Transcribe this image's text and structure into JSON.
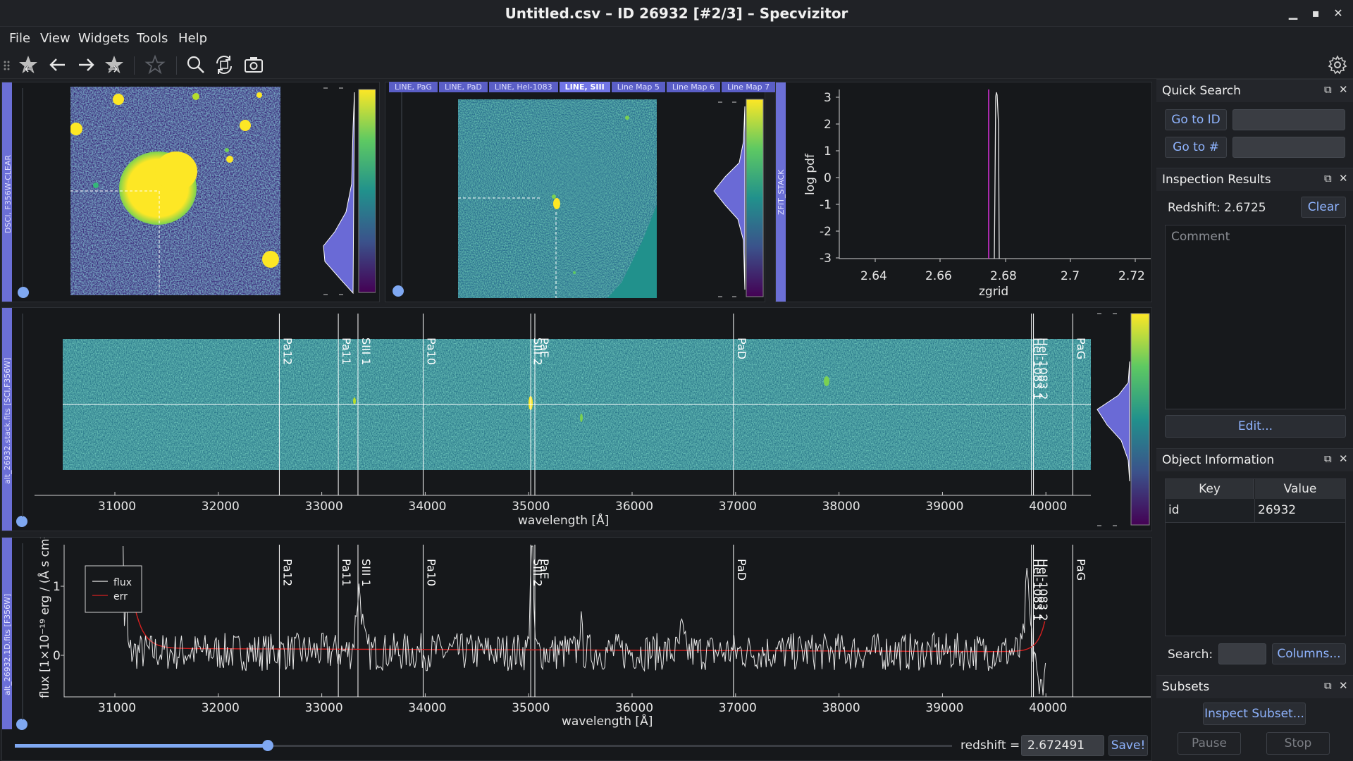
{
  "window": {
    "title": "Untitled.csv – ID 26932 [#2/3] – Specvizitor",
    "minimize": "▁",
    "maximize": "▪",
    "close": "✕"
  },
  "menu": [
    "File",
    "View",
    "Widgets",
    "Tools",
    "Help"
  ],
  "toolbar_icons": [
    "star-back-icon",
    "arrow-left-icon",
    "arrow-right-icon",
    "star-forward-icon",
    "star-icon",
    "zoom-icon",
    "refresh-icon",
    "screenshot-icon",
    "settings-icon"
  ],
  "image_panel": {
    "label": "DSCI, F356W-CLEAR"
  },
  "line_map_panel": {
    "tabs": [
      {
        "label": "LINE, PaG",
        "active": false
      },
      {
        "label": "LINE, PaD",
        "active": false
      },
      {
        "label": "LINE, HeI-1083",
        "active": false
      },
      {
        "label": "LINE, SIII",
        "active": true
      },
      {
        "label": "Line Map 5",
        "active": false
      },
      {
        "label": "Line Map 6",
        "active": false
      },
      {
        "label": "Line Map 7",
        "active": false
      }
    ]
  },
  "zfit_panel": {
    "label": "ZFIT_STACK",
    "xlabel": "zgrid",
    "ylabel": "log pdf",
    "xticks": [
      "2.64",
      "2.66",
      "2.68",
      "2.7",
      "2.72"
    ],
    "yticks": [
      "3",
      "2",
      "1",
      "0",
      "-1",
      "-2",
      "-3"
    ]
  },
  "spec2d_panel": {
    "label": "alt_26932.stack.fits [SCI,F356W]",
    "xlabel": "wavelength [Å]",
    "xticks": [
      "31000",
      "32000",
      "33000",
      "34000",
      "35000",
      "36000",
      "37000",
      "38000",
      "39000",
      "40000"
    ],
    "lines": [
      "Pa12",
      "Pa11",
      "SIII 1",
      "Pa10",
      "SIII 2",
      "PaE",
      "PaD",
      "HeI-1083 1",
      "HeI-1083 2",
      "PaG"
    ]
  },
  "spec1d_panel": {
    "label": "alt_26932.1D.fits [F356W]",
    "xlabel": "wavelength [Å]",
    "ylabel": "flux [1×10⁻¹⁹ erg / (Å s cm²)]",
    "yticks": [
      "1",
      "0"
    ],
    "legend": [
      "flux",
      "err"
    ],
    "xticks": [
      "31000",
      "32000",
      "33000",
      "34000",
      "35000",
      "36000",
      "37000",
      "38000",
      "39000",
      "40000"
    ],
    "lines": [
      "Pa12",
      "Pa11",
      "SIII 1",
      "Pa10",
      "SIII 2",
      "PaE",
      "PaD",
      "HeI-1083 1",
      "HeI-1083 2",
      "PaG"
    ]
  },
  "redshift_bar": {
    "label": "redshift =",
    "value": "2.672491",
    "save": "Save!",
    "slider_fraction": 0.27
  },
  "quick_search": {
    "title": "Quick Search",
    "goto_id": "Go to ID",
    "goto_num": "Go to #"
  },
  "inspection": {
    "title": "Inspection Results",
    "redshift": "Redshift: 2.6725",
    "clear": "Clear",
    "comment_placeholder": "Comment",
    "edit": "Edit..."
  },
  "object_info": {
    "title": "Object Information",
    "columns": [
      "Key",
      "Value"
    ],
    "rows": [
      [
        "id",
        "26932"
      ]
    ],
    "search_label": "Search:",
    "columns_button": "Columns..."
  },
  "subsets": {
    "title": "Subsets",
    "inspect": "Inspect Subset...",
    "pause": "Pause",
    "stop": "Stop"
  },
  "colors": {
    "handle": "#6b6fd6",
    "accent": "#7fa8f2",
    "viridis_low": "#440154",
    "viridis_high": "#fde725",
    "err_line": "#d62020"
  }
}
